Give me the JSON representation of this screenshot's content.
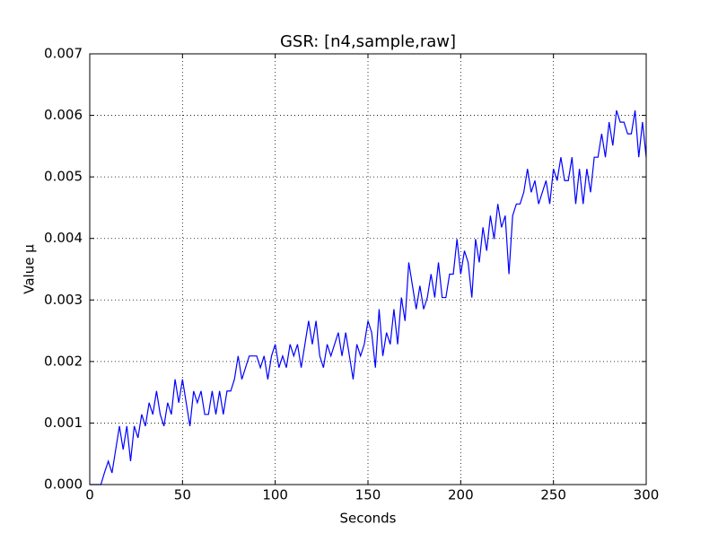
{
  "chart_data": {
    "type": "line",
    "title": "GSR: [n4,sample,raw]",
    "x_label": "Seconds",
    "y_label": "Value µ",
    "x": [
      0,
      2,
      4,
      6,
      8,
      10,
      12,
      14,
      16,
      18,
      20,
      22,
      24,
      26,
      28,
      30,
      32,
      34,
      36,
      38,
      40,
      42,
      44,
      46,
      48,
      50,
      52,
      54,
      56,
      58,
      60,
      62,
      64,
      66,
      68,
      70,
      72,
      74,
      76,
      78,
      80,
      82,
      84,
      86,
      88,
      90,
      92,
      94,
      96,
      98,
      100,
      102,
      104,
      106,
      108,
      110,
      112,
      114,
      116,
      118,
      120,
      122,
      124,
      126,
      128,
      130,
      132,
      134,
      136,
      138,
      140,
      142,
      144,
      146,
      148,
      150,
      152,
      154,
      156,
      158,
      160,
      162,
      164,
      166,
      168,
      170,
      172,
      174,
      176,
      178,
      180,
      182,
      184,
      186,
      188,
      190,
      192,
      194,
      196,
      198,
      200,
      202,
      204,
      206,
      208,
      210,
      212,
      214,
      216,
      218,
      220,
      222,
      224,
      226,
      228,
      230,
      232,
      234,
      236,
      238,
      240,
      242,
      244,
      246,
      248,
      250,
      252,
      254,
      256,
      258,
      260,
      262,
      264,
      266,
      268,
      270,
      272,
      274,
      276,
      278,
      280,
      282,
      284,
      286,
      288,
      290,
      292,
      294,
      296,
      298,
      300
    ],
    "series": [
      {
        "name": "GSR",
        "color": "#0000ff",
        "values": [
          0,
          0,
          0,
          0,
          0.0002,
          0.00038,
          0.00019,
          0.00057,
          0.00095,
          0.00057,
          0.00095,
          0.00038,
          0.00095,
          0.00076,
          0.00114,
          0.00095,
          0.00133,
          0.00114,
          0.00152,
          0.00114,
          0.00095,
          0.00133,
          0.00114,
          0.00171,
          0.00133,
          0.00171,
          0.00133,
          0.00095,
          0.00152,
          0.00133,
          0.00152,
          0.00114,
          0.00114,
          0.00152,
          0.00114,
          0.00152,
          0.00114,
          0.00152,
          0.00152,
          0.00171,
          0.00209,
          0.00171,
          0.0019,
          0.00209,
          0.00209,
          0.00209,
          0.0019,
          0.00209,
          0.00171,
          0.00209,
          0.00228,
          0.0019,
          0.00209,
          0.0019,
          0.00228,
          0.00209,
          0.00228,
          0.0019,
          0.00228,
          0.00266,
          0.00228,
          0.00266,
          0.00209,
          0.0019,
          0.00228,
          0.00209,
          0.00228,
          0.00247,
          0.00209,
          0.00247,
          0.00209,
          0.00171,
          0.00228,
          0.00209,
          0.00228,
          0.00266,
          0.00247,
          0.0019,
          0.00285,
          0.00209,
          0.00247,
          0.00228,
          0.00285,
          0.00228,
          0.00304,
          0.00266,
          0.00361,
          0.00323,
          0.00285,
          0.00323,
          0.00285,
          0.00304,
          0.00342,
          0.00304,
          0.00361,
          0.00304,
          0.00304,
          0.00342,
          0.00342,
          0.00399,
          0.00342,
          0.0038,
          0.00361,
          0.00304,
          0.00399,
          0.00361,
          0.00418,
          0.0038,
          0.00437,
          0.00399,
          0.00456,
          0.00418,
          0.00437,
          0.00342,
          0.00437,
          0.00456,
          0.00456,
          0.00475,
          0.00513,
          0.00475,
          0.00494,
          0.00456,
          0.00475,
          0.00494,
          0.00456,
          0.00513,
          0.00494,
          0.00532,
          0.00494,
          0.00494,
          0.00532,
          0.00456,
          0.00513,
          0.00456,
          0.00513,
          0.00475,
          0.00532,
          0.00532,
          0.0057,
          0.00532,
          0.00589,
          0.00551,
          0.00608,
          0.00589,
          0.00589,
          0.0057,
          0.0057,
          0.00608,
          0.00532,
          0.00589,
          0.00532
        ]
      }
    ],
    "xlim": [
      0,
      300
    ],
    "xticks": [
      0,
      50,
      100,
      150,
      200,
      250,
      300
    ],
    "ylim": [
      0,
      0.007
    ],
    "yticks": [
      {
        "value": 0,
        "label": "0.000"
      },
      0.001,
      0.002,
      0.003,
      0.004,
      0.005,
      0.006,
      0.007
    ],
    "grid": true
  }
}
